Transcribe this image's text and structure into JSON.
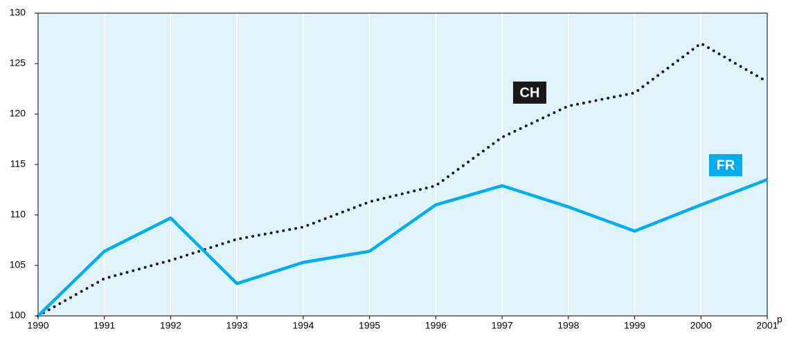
{
  "chart_data": {
    "type": "line",
    "x": [
      1990,
      1991,
      1992,
      1993,
      1994,
      1995,
      1996,
      1997,
      1998,
      1999,
      2000,
      2001
    ],
    "series": [
      {
        "name": "CH",
        "color": "#1a1a1a",
        "dashed": true,
        "values": [
          100,
          103.7,
          105.5,
          107.6,
          108.8,
          111.3,
          112.9,
          117.7,
          120.8,
          122.1,
          127.0,
          123.2
        ]
      },
      {
        "name": "FR",
        "color": "#00aeef",
        "dashed": false,
        "values": [
          100,
          106.4,
          109.7,
          103.2,
          105.3,
          106.4,
          111.0,
          112.9,
          110.8,
          108.4,
          111.0,
          113.5
        ]
      }
    ],
    "xlim": [
      1990,
      2001
    ],
    "xticks": [
      1990,
      1991,
      1992,
      1993,
      1994,
      1995,
      1996,
      1997,
      1998,
      1999,
      2000,
      2001
    ],
    "ylim": [
      100,
      130
    ],
    "yticks": [
      100,
      105,
      110,
      115,
      120,
      125,
      130
    ],
    "annotations": [
      "p"
    ],
    "grid": "x",
    "background": "#e0f2fa"
  }
}
